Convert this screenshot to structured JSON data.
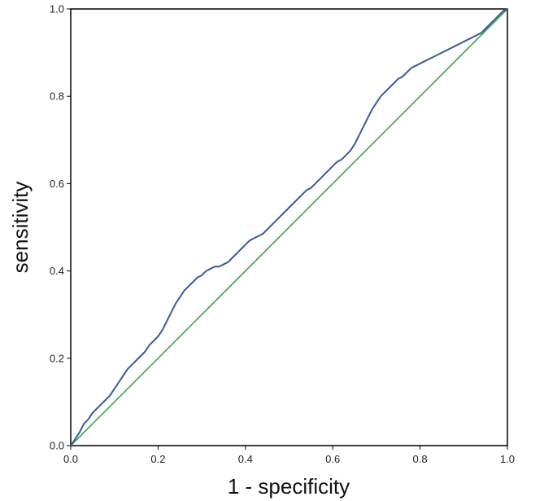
{
  "chart_data": {
    "type": "line",
    "title": "",
    "xlabel": "1 - specificity",
    "ylabel": "sensitivity",
    "xlim": [
      0,
      1
    ],
    "ylim": [
      0,
      1
    ],
    "grid": false,
    "legend": "none",
    "x_ticks": [
      0.0,
      0.2,
      0.4,
      0.6,
      0.8,
      1.0
    ],
    "y_ticks": [
      0.0,
      0.2,
      0.4,
      0.6,
      0.8,
      1.0
    ],
    "x_tick_labels": [
      "0.0",
      "0.2",
      "0.4",
      "0.6",
      "0.8",
      "1.0"
    ],
    "y_tick_labels": [
      "0.0",
      "0.2",
      "0.4",
      "0.6",
      "0.8",
      "1.0"
    ],
    "colors": {
      "roc_curve": "#3a5a9c",
      "reference_line": "#3aa655",
      "frame": "#000000"
    },
    "series": [
      {
        "x": [
          0.0,
          0.01,
          0.02,
          0.03,
          0.04,
          0.05,
          0.06,
          0.07,
          0.08,
          0.09,
          0.1,
          0.11,
          0.12,
          0.13,
          0.14,
          0.15,
          0.16,
          0.17,
          0.18,
          0.19,
          0.2,
          0.21,
          0.22,
          0.23,
          0.24,
          0.25,
          0.26,
          0.27,
          0.28,
          0.29,
          0.3,
          0.31,
          0.32,
          0.33,
          0.34,
          0.35,
          0.36,
          0.37,
          0.38,
          0.39,
          0.4,
          0.41,
          0.42,
          0.43,
          0.44,
          0.45,
          0.46,
          0.47,
          0.48,
          0.49,
          0.5,
          0.51,
          0.52,
          0.53,
          0.54,
          0.55,
          0.56,
          0.57,
          0.58,
          0.59,
          0.6,
          0.61,
          0.62,
          0.63,
          0.64,
          0.65,
          0.66,
          0.67,
          0.68,
          0.69,
          0.7,
          0.71,
          0.72,
          0.73,
          0.74,
          0.75,
          0.76,
          0.77,
          0.78,
          0.79,
          0.8,
          0.81,
          0.82,
          0.83,
          0.84,
          0.85,
          0.86,
          0.87,
          0.88,
          0.89,
          0.9,
          0.91,
          0.92,
          0.93,
          0.94,
          0.95,
          0.96,
          0.97,
          0.98,
          0.99,
          1.0
        ],
        "y": [
          0.0,
          0.015,
          0.03,
          0.05,
          0.06,
          0.075,
          0.085,
          0.095,
          0.105,
          0.115,
          0.13,
          0.145,
          0.16,
          0.175,
          0.185,
          0.195,
          0.205,
          0.215,
          0.23,
          0.24,
          0.25,
          0.265,
          0.285,
          0.305,
          0.325,
          0.34,
          0.355,
          0.365,
          0.375,
          0.385,
          0.39,
          0.4,
          0.405,
          0.41,
          0.41,
          0.415,
          0.42,
          0.43,
          0.44,
          0.45,
          0.46,
          0.47,
          0.475,
          0.48,
          0.485,
          0.495,
          0.505,
          0.515,
          0.525,
          0.535,
          0.545,
          0.555,
          0.565,
          0.575,
          0.585,
          0.59,
          0.6,
          0.61,
          0.62,
          0.63,
          0.64,
          0.65,
          0.655,
          0.665,
          0.675,
          0.69,
          0.71,
          0.73,
          0.75,
          0.77,
          0.785,
          0.8,
          0.81,
          0.82,
          0.83,
          0.84,
          0.845,
          0.855,
          0.865,
          0.87,
          0.875,
          0.88,
          0.885,
          0.89,
          0.895,
          0.9,
          0.905,
          0.91,
          0.915,
          0.92,
          0.925,
          0.93,
          0.935,
          0.94,
          0.945,
          0.955,
          0.965,
          0.975,
          0.985,
          0.995,
          1.0
        ]
      },
      {
        "x": [
          0.0,
          1.0
        ],
        "y": [
          0.0,
          1.0
        ]
      }
    ]
  }
}
